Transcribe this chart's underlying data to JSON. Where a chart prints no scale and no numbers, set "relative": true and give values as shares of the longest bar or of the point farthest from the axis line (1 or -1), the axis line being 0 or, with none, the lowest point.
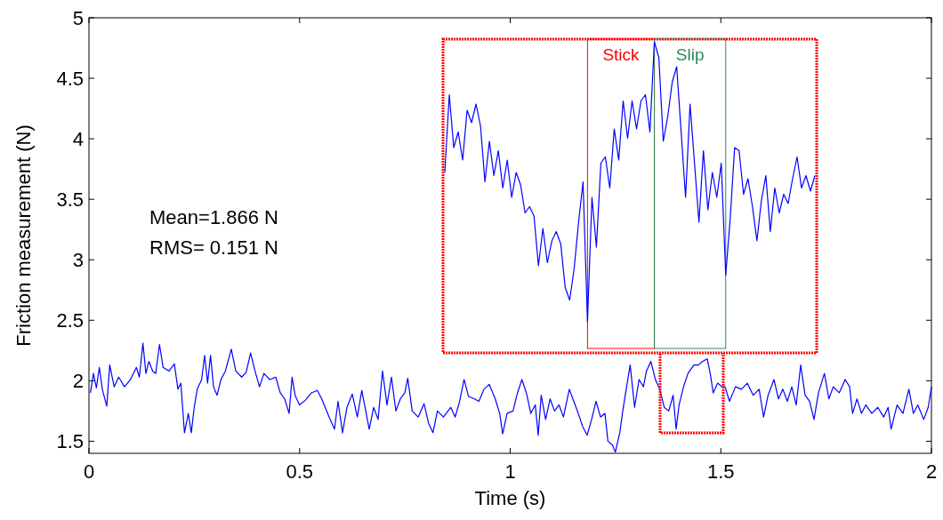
{
  "chart_data": [
    {
      "type": "line",
      "xlabel": "Time (s)",
      "ylabel": "Friction measurement (N)",
      "xlim": [
        0,
        2
      ],
      "ylim": [
        1.4,
        5
      ],
      "xticks": [
        0,
        0.5,
        1,
        1.5,
        2
      ],
      "yticks": [
        1.5,
        2,
        2.5,
        3,
        3.5,
        4,
        4.5,
        5
      ],
      "grid": false,
      "annotations": [
        "Mean=1.866 N",
        "RMS= 0.151 N"
      ],
      "series": [
        {
          "color": "#0000ff",
          "x": [
            0.0035,
            0.0106,
            0.0176,
            0.0246,
            0.0317,
            0.0422,
            0.0493,
            0.0598,
            0.0704,
            0.0845,
            0.0986,
            0.1126,
            0.1197,
            0.1281,
            0.1352,
            0.1422,
            0.1514,
            0.1584,
            0.1675,
            0.176,
            0.1901,
            0.2027,
            0.2112,
            0.2182,
            0.2267,
            0.2358,
            0.2429,
            0.2499,
            0.257,
            0.2675,
            0.2746,
            0.2816,
            0.2886,
            0.2957,
            0.3041,
            0.3133,
            0.3238,
            0.3379,
            0.3485,
            0.3625,
            0.3731,
            0.3837,
            0.3942,
            0.4048,
            0.4153,
            0.4294,
            0.4435,
            0.4541,
            0.4646,
            0.4752,
            0.4822,
            0.4893,
            0.4998,
            0.5139,
            0.528,
            0.5421,
            0.5526,
            0.5702,
            0.5829,
            0.5913,
            0.6019,
            0.6125,
            0.6251,
            0.6371,
            0.6477,
            0.6653,
            0.6758,
            0.6864,
            0.6969,
            0.7075,
            0.7181,
            0.7286,
            0.7392,
            0.7497,
            0.7568,
            0.7673,
            0.7814,
            0.7955,
            0.8061,
            0.8166,
            0.8272,
            0.8413,
            0.8589,
            0.8694,
            0.88,
            0.8905,
            0.9011,
            0.9152,
            0.9257,
            0.9377,
            0.9504,
            0.9645,
            0.975,
            0.9821,
            0.9926,
            1.0067,
            1.0173,
            1.0278,
            1.0384,
            1.0489,
            1.0595,
            1.0665,
            1.0736,
            1.0841,
            1.0947,
            1.1052,
            1.1158,
            1.1264,
            1.1404,
            1.151,
            1.1616,
            1.1721,
            1.1827,
            1.1932,
            1.2038,
            1.2144,
            1.2249,
            1.232,
            1.2425,
            1.2496,
            1.2601,
            1.2672,
            1.2777,
            1.2848,
            1.2953,
            1.3059,
            1.3164,
            1.3235,
            1.334,
            1.3446,
            1.3552,
            1.3657,
            1.3763,
            1.3868,
            1.3939,
            1.4009,
            1.4115,
            1.422,
            1.4361,
            1.4467,
            1.4572,
            1.4678,
            1.4748,
            1.4819,
            1.4924,
            1.503,
            1.51,
            1.5206,
            1.5347,
            1.5488,
            1.5629,
            1.5769,
            1.591,
            1.6016,
            1.6122,
            1.6262,
            1.6368,
            1.6473,
            1.6579,
            1.6685,
            1.679,
            1.6896,
            1.7001,
            1.7107,
            1.7213,
            1.7318,
            1.7459,
            1.7565,
            1.767,
            1.7811,
            1.7952,
            1.8057,
            1.8128,
            1.8233,
            1.8339,
            1.8444,
            1.8585,
            1.8726,
            1.8867,
            1.8973,
            1.9043,
            1.9184,
            1.9324,
            1.9465,
            1.9571,
            1.9676,
            1.9817,
            1.9923,
            2.0
          ],
          "values": [
            1.9,
            2.06,
            1.94,
            2.11,
            1.93,
            1.79,
            2.13,
            1.95,
            2.03,
            1.95,
            2.01,
            2.11,
            2.03,
            2.31,
            2.06,
            2.16,
            2.08,
            2.06,
            2.3,
            2.11,
            2.08,
            2.14,
            1.93,
            1.98,
            1.57,
            1.73,
            1.57,
            1.78,
            1.93,
            2.01,
            2.21,
            1.98,
            2.21,
            1.95,
            1.88,
            2.01,
            2.08,
            2.26,
            2.08,
            2.03,
            2.07,
            2.23,
            2.08,
            1.95,
            2.06,
            2.01,
            2.03,
            1.9,
            1.85,
            1.73,
            2.03,
            1.88,
            1.8,
            1.84,
            1.9,
            1.92,
            1.85,
            1.7,
            1.6,
            1.83,
            1.57,
            1.78,
            1.89,
            1.7,
            1.92,
            1.6,
            1.78,
            1.68,
            2.08,
            1.8,
            2.03,
            1.75,
            1.85,
            1.9,
            2.02,
            1.75,
            1.7,
            1.81,
            1.65,
            1.57,
            1.75,
            1.7,
            1.78,
            1.7,
            1.83,
            2.01,
            1.87,
            1.85,
            1.83,
            1.93,
            1.97,
            1.85,
            1.73,
            1.56,
            1.73,
            1.75,
            1.9,
            2.01,
            1.9,
            1.73,
            1.8,
            1.55,
            1.88,
            1.68,
            1.85,
            1.75,
            1.8,
            1.7,
            1.93,
            1.83,
            1.73,
            1.62,
            1.55,
            1.68,
            1.83,
            1.7,
            1.73,
            1.5,
            1.47,
            1.41,
            1.57,
            1.75,
            1.98,
            2.13,
            1.78,
            2.01,
            1.95,
            2.08,
            2.16,
            2.01,
            1.93,
            1.78,
            1.75,
            1.88,
            1.6,
            1.8,
            1.95,
            2.06,
            2.13,
            2.13,
            2.16,
            2.18,
            2.06,
            1.9,
            1.98,
            1.95,
            1.95,
            1.83,
            1.95,
            1.93,
            1.98,
            1.88,
            1.93,
            1.7,
            1.88,
            2.01,
            1.85,
            1.93,
            1.83,
            1.95,
            1.8,
            2.13,
            1.88,
            1.83,
            1.68,
            1.9,
            2.06,
            1.85,
            1.95,
            1.9,
            2.01,
            1.95,
            1.73,
            1.85,
            1.73,
            1.8,
            1.73,
            1.78,
            1.7,
            1.78,
            1.6,
            1.8,
            1.73,
            1.93,
            1.73,
            1.8,
            1.68,
            1.78,
            1.95
          ]
        }
      ]
    },
    {
      "type": "line",
      "relative": true,
      "categories": [
        null,
        null,
        null,
        null,
        null,
        null,
        null,
        null,
        null,
        null,
        null,
        null,
        null,
        null,
        null,
        null,
        null,
        null,
        null,
        null,
        null,
        null,
        null,
        null,
        null,
        null,
        null,
        null,
        null,
        null,
        null,
        null,
        null,
        null,
        null,
        null,
        null,
        null,
        null,
        null,
        null,
        null,
        null,
        null,
        null,
        null,
        null,
        null,
        null,
        null,
        null,
        null,
        null,
        null,
        null,
        null,
        null,
        null,
        null,
        null,
        null,
        null,
        null,
        null,
        null,
        null,
        null,
        null,
        null,
        null,
        null,
        null,
        null,
        null,
        null,
        null,
        null,
        null,
        null,
        null,
        null,
        null,
        null,
        null
      ],
      "annotations": [
        "Stick",
        "Slip"
      ],
      "series": [
        {
          "color": "#0000ff",
          "values": [
            0.58,
            0.83,
            0.66,
            0.71,
            0.62,
            0.78,
            0.74,
            0.8,
            0.73,
            0.55,
            0.68,
            0.57,
            0.65,
            0.53,
            0.62,
            0.5,
            0.58,
            0.54,
            0.45,
            0.47,
            0.44,
            0.28,
            0.4,
            0.29,
            0.36,
            0.39,
            0.35,
            0.21,
            0.17,
            0.27,
            0.42,
            0.55,
            0.1,
            0.5,
            0.34,
            0.61,
            0.63,
            0.53,
            0.72,
            0.62,
            0.81,
            0.69,
            0.81,
            0.72,
            0.81,
            0.83,
            0.71,
            1,
            0.95,
            0.68,
            0.76,
            0.87,
            0.92,
            0.71,
            0.5,
            0.8,
            0.61,
            0.42,
            0.65,
            0.46,
            0.58,
            0.5,
            0.61,
            0.25,
            0.43,
            0.66,
            0.65,
            0.51,
            0.56,
            0.47,
            0.36,
            0.49,
            0.57,
            0.39,
            0.53,
            0.45,
            0.51,
            0.48,
            0.56,
            0.63,
            0.53,
            0.57,
            0.52,
            0.57
          ]
        }
      ]
    }
  ]
}
